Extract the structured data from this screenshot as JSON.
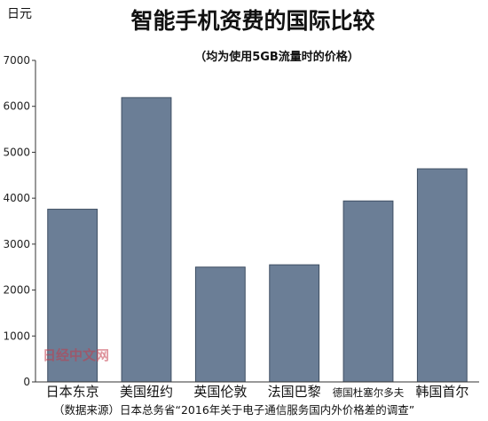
{
  "chart_data": {
    "type": "bar",
    "title": "智能手机资费的国际比较",
    "subtitle": "（均为使用5GB流量时的价格）",
    "ylabel": "日元",
    "ylim": [
      0,
      7000
    ],
    "yticks": [
      0,
      1000,
      2000,
      3000,
      4000,
      5000,
      6000,
      7000
    ],
    "categories": [
      "日本东京",
      "美国纽约",
      "英国伦敦",
      "法国巴黎",
      "德国杜塞尔多夫",
      "韩国首尔"
    ],
    "values": [
      3760,
      6190,
      2500,
      2550,
      3940,
      4640
    ],
    "grid": false,
    "bar_color": "#6b7e96"
  },
  "source": "（数据来源）日本总务省“2016年关于电子通信服务国内外价格差的调查”",
  "watermark": "日经中文网"
}
